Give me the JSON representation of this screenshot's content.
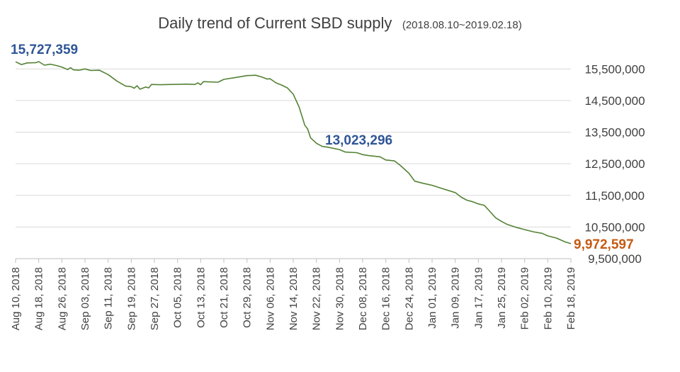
{
  "chart_data": {
    "type": "line",
    "title": "Daily trend of Current SBD supply",
    "subtitle": "(2018.08.10~2019.02.18)",
    "xlabel": "",
    "ylabel": "",
    "ylim": [
      9500000,
      16000000
    ],
    "y_ticks": [
      "9,500,000",
      "10,500,000",
      "11,500,000",
      "12,500,000",
      "13,500,000",
      "14,500,000",
      "15,500,000"
    ],
    "y_tick_values": [
      9500000,
      10500000,
      11500000,
      12500000,
      13500000,
      14500000,
      15500000
    ],
    "x_ticks": [
      "Aug 10, 2018",
      "Aug 18, 2018",
      "Aug 26, 2018",
      "Sep 03, 2018",
      "Sep 11, 2018",
      "Sep 19, 2018",
      "Sep 27, 2018",
      "Oct 05, 2018",
      "Oct 13, 2018",
      "Oct 21, 2018",
      "Oct 29, 2018",
      "Nov 06, 2018",
      "Nov 14, 2018",
      "Nov 22, 2018",
      "Nov 30, 2018",
      "Dec 08, 2018",
      "Dec 16, 2018",
      "Dec 24, 2018",
      "Jan 01, 2019",
      "Jan 09, 2019",
      "Jan 17, 2019",
      "Jan 25, 2019",
      "Feb 02, 2019",
      "Feb 10, 2019",
      "Feb 18, 2019"
    ],
    "grid": true,
    "y_axis_side": "right",
    "series": [
      {
        "color": "#548235",
        "points": [
          {
            "x": "2018-08-10",
            "y": 15727359
          },
          {
            "x": "2018-08-12",
            "y": 15640000
          },
          {
            "x": "2018-08-14",
            "y": 15690000
          },
          {
            "x": "2018-08-17",
            "y": 15700000
          },
          {
            "x": "2018-08-18",
            "y": 15730000
          },
          {
            "x": "2018-08-20",
            "y": 15620000
          },
          {
            "x": "2018-08-22",
            "y": 15650000
          },
          {
            "x": "2018-08-24",
            "y": 15610000
          },
          {
            "x": "2018-08-26",
            "y": 15560000
          },
          {
            "x": "2018-08-28",
            "y": 15480000
          },
          {
            "x": "2018-08-29",
            "y": 15540000
          },
          {
            "x": "2018-08-30",
            "y": 15470000
          },
          {
            "x": "2018-09-01",
            "y": 15460000
          },
          {
            "x": "2018-09-03",
            "y": 15500000
          },
          {
            "x": "2018-09-05",
            "y": 15450000
          },
          {
            "x": "2018-09-08",
            "y": 15460000
          },
          {
            "x": "2018-09-11",
            "y": 15320000
          },
          {
            "x": "2018-09-14",
            "y": 15120000
          },
          {
            "x": "2018-09-17",
            "y": 14960000
          },
          {
            "x": "2018-09-19",
            "y": 14940000
          },
          {
            "x": "2018-09-20",
            "y": 14890000
          },
          {
            "x": "2018-09-21",
            "y": 14970000
          },
          {
            "x": "2018-09-22",
            "y": 14860000
          },
          {
            "x": "2018-09-24",
            "y": 14930000
          },
          {
            "x": "2018-09-25",
            "y": 14900000
          },
          {
            "x": "2018-09-26",
            "y": 15010000
          },
          {
            "x": "2018-09-29",
            "y": 15000000
          },
          {
            "x": "2018-10-03",
            "y": 15010000
          },
          {
            "x": "2018-10-08",
            "y": 15020000
          },
          {
            "x": "2018-10-11",
            "y": 15010000
          },
          {
            "x": "2018-10-12",
            "y": 15060000
          },
          {
            "x": "2018-10-13",
            "y": 15000000
          },
          {
            "x": "2018-10-14",
            "y": 15100000
          },
          {
            "x": "2018-10-16",
            "y": 15090000
          },
          {
            "x": "2018-10-19",
            "y": 15080000
          },
          {
            "x": "2018-10-21",
            "y": 15170000
          },
          {
            "x": "2018-10-25",
            "y": 15230000
          },
          {
            "x": "2018-10-29",
            "y": 15290000
          },
          {
            "x": "2018-11-01",
            "y": 15300000
          },
          {
            "x": "2018-11-03",
            "y": 15250000
          },
          {
            "x": "2018-11-05",
            "y": 15180000
          },
          {
            "x": "2018-11-06",
            "y": 15190000
          },
          {
            "x": "2018-11-08",
            "y": 15060000
          },
          {
            "x": "2018-11-10",
            "y": 14990000
          },
          {
            "x": "2018-11-12",
            "y": 14900000
          },
          {
            "x": "2018-11-14",
            "y": 14700000
          },
          {
            "x": "2018-11-16",
            "y": 14300000
          },
          {
            "x": "2018-11-18",
            "y": 13720000
          },
          {
            "x": "2018-11-19",
            "y": 13600000
          },
          {
            "x": "2018-11-20",
            "y": 13320000
          },
          {
            "x": "2018-11-22",
            "y": 13150000
          },
          {
            "x": "2018-11-24",
            "y": 13050000
          },
          {
            "x": "2018-11-26",
            "y": 13023296
          },
          {
            "x": "2018-11-30",
            "y": 12950000
          },
          {
            "x": "2018-12-02",
            "y": 12870000
          },
          {
            "x": "2018-12-06",
            "y": 12850000
          },
          {
            "x": "2018-12-08",
            "y": 12790000
          },
          {
            "x": "2018-12-10",
            "y": 12760000
          },
          {
            "x": "2018-12-14",
            "y": 12720000
          },
          {
            "x": "2018-12-16",
            "y": 12620000
          },
          {
            "x": "2018-12-19",
            "y": 12590000
          },
          {
            "x": "2018-12-21",
            "y": 12450000
          },
          {
            "x": "2018-12-24",
            "y": 12200000
          },
          {
            "x": "2018-12-26",
            "y": 11950000
          },
          {
            "x": "2018-12-29",
            "y": 11880000
          },
          {
            "x": "2019-01-01",
            "y": 11820000
          },
          {
            "x": "2019-01-05",
            "y": 11700000
          },
          {
            "x": "2019-01-09",
            "y": 11590000
          },
          {
            "x": "2019-01-11",
            "y": 11450000
          },
          {
            "x": "2019-01-13",
            "y": 11350000
          },
          {
            "x": "2019-01-15",
            "y": 11300000
          },
          {
            "x": "2019-01-17",
            "y": 11230000
          },
          {
            "x": "2019-01-19",
            "y": 11190000
          },
          {
            "x": "2019-01-21",
            "y": 10990000
          },
          {
            "x": "2019-01-23",
            "y": 10790000
          },
          {
            "x": "2019-01-25",
            "y": 10680000
          },
          {
            "x": "2019-01-27",
            "y": 10580000
          },
          {
            "x": "2019-01-30",
            "y": 10490000
          },
          {
            "x": "2019-02-02",
            "y": 10420000
          },
          {
            "x": "2019-02-05",
            "y": 10350000
          },
          {
            "x": "2019-02-08",
            "y": 10300000
          },
          {
            "x": "2019-02-10",
            "y": 10220000
          },
          {
            "x": "2019-02-13",
            "y": 10150000
          },
          {
            "x": "2019-02-16",
            "y": 10030000
          },
          {
            "x": "2019-02-18",
            "y": 9972597
          }
        ]
      }
    ],
    "annotations": [
      {
        "text": "15,727,359",
        "x": "2018-08-10",
        "y": 15727359,
        "color": "#2f5597"
      },
      {
        "text": "13,023,296",
        "x": "2018-11-26",
        "y": 13023296,
        "color": "#2f5597"
      },
      {
        "text": "9,972,597",
        "x": "2019-02-18",
        "y": 9972597,
        "color": "#c55a11"
      }
    ]
  }
}
